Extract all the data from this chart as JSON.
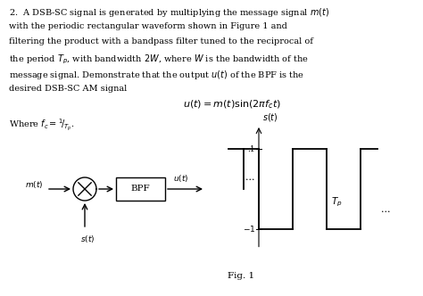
{
  "bg_color": "#ffffff",
  "text_color": "#000000",
  "text_lines": [
    "2.  A DSB-SC signal is generated by multiplying the message signal $m(t)$",
    "with the periodic rectangular waveform shown in Figure 1 and",
    "filtering the product with a bandpass filter tuned to the reciprocal of",
    "the period $T_p$, with bandwidth $2W$, where $W$ is the bandwidth of the",
    "message signal. Demonstrate that the output $u(t)$ of the BPF is the",
    "desired DSB-SC AM signal"
  ],
  "equation": "$u(t) = m(t)\\sin(2\\pi f_c t)$",
  "where_fc": "Where $f_c = {}^1\\!/_{T_p}$.",
  "fig_label": "Fig. 1",
  "font_size_body": 7.0,
  "font_size_eq": 8.0,
  "font_size_where": 7.0
}
